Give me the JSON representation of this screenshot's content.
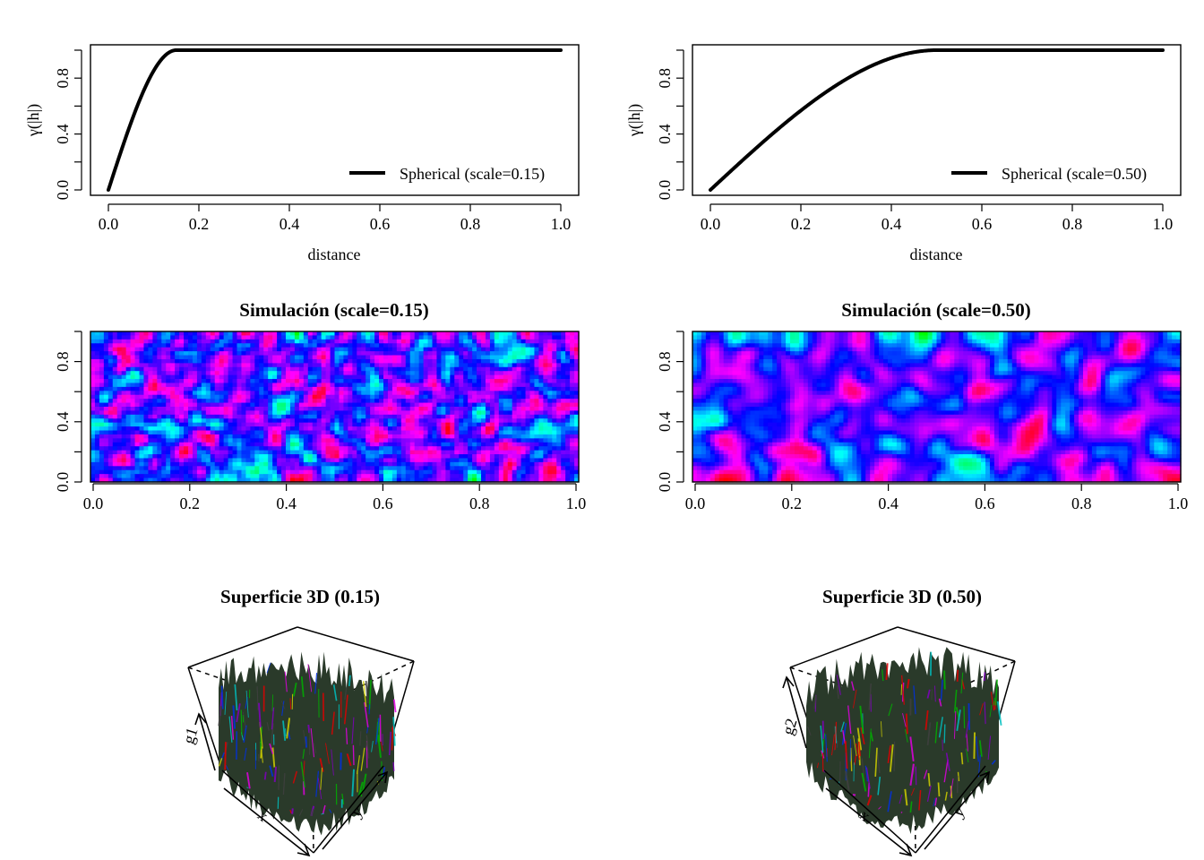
{
  "chart_data": [
    {
      "type": "line",
      "id": "variogram-015",
      "xlabel": "distance",
      "ylabel": "γ(|h|)",
      "xlim": [
        0,
        1
      ],
      "ylim": [
        0,
        1
      ],
      "xticks": [
        0.0,
        0.2,
        0.4,
        0.6,
        0.8,
        1.0
      ],
      "xtick_labels": [
        "0.0",
        "0.2",
        "0.4",
        "0.6",
        "0.8",
        "1.0"
      ],
      "yticks": [
        0.0,
        0.4,
        0.8
      ],
      "ytick_labels": [
        "0.0",
        "0.4",
        "0.8"
      ],
      "model": "spherical",
      "scale": 0.15,
      "series": [
        {
          "name": "Spherical (scale=0.15)"
        }
      ],
      "legend_position": "bottom-right"
    },
    {
      "type": "line",
      "id": "variogram-050",
      "xlabel": "distance",
      "ylabel": "γ(|h|)",
      "xlim": [
        0,
        1
      ],
      "ylim": [
        0,
        1
      ],
      "xticks": [
        0.0,
        0.2,
        0.4,
        0.6,
        0.8,
        1.0
      ],
      "xtick_labels": [
        "0.0",
        "0.2",
        "0.4",
        "0.6",
        "0.8",
        "1.0"
      ],
      "yticks": [
        0.0,
        0.4,
        0.8
      ],
      "ytick_labels": [
        "0.0",
        "0.4",
        "0.8"
      ],
      "model": "spherical",
      "scale": 0.5,
      "series": [
        {
          "name": "Spherical (scale=0.50)"
        }
      ],
      "legend_position": "bottom-right"
    },
    {
      "type": "heatmap",
      "id": "sim-015",
      "title": "Simulación (scale=0.15)",
      "xlim": [
        0,
        1
      ],
      "ylim": [
        0,
        1
      ],
      "xticks": [
        0.0,
        0.2,
        0.4,
        0.6,
        0.8,
        1.0
      ],
      "xtick_labels": [
        "0.0",
        "0.2",
        "0.4",
        "0.6",
        "0.8",
        "1.0"
      ],
      "yticks": [
        0.0,
        0.4,
        0.8
      ],
      "ytick_labels": [
        "0.0",
        "0.4",
        "0.8"
      ],
      "colormap": "rainbow",
      "scale": 0.15
    },
    {
      "type": "heatmap",
      "id": "sim-050",
      "title": "Simulación (scale=0.50)",
      "xlim": [
        0,
        1
      ],
      "ylim": [
        0,
        1
      ],
      "xticks": [
        0.0,
        0.2,
        0.4,
        0.6,
        0.8,
        1.0
      ],
      "xtick_labels": [
        "0.0",
        "0.2",
        "0.4",
        "0.6",
        "0.8",
        "1.0"
      ],
      "yticks": [
        0.0,
        0.4,
        0.8
      ],
      "ytick_labels": [
        "0.0",
        "0.4",
        "0.8"
      ],
      "colormap": "rainbow",
      "scale": 0.5
    },
    {
      "type": "surface",
      "id": "surface-015",
      "title": "Superficie 3D (0.15)",
      "xlabel": "x",
      "ylabel": "y",
      "zlabel": "g1"
    },
    {
      "type": "surface",
      "id": "surface-050",
      "title": "Superficie 3D (0.50)",
      "xlabel": "x",
      "ylabel": "y",
      "zlabel": "g2"
    }
  ]
}
